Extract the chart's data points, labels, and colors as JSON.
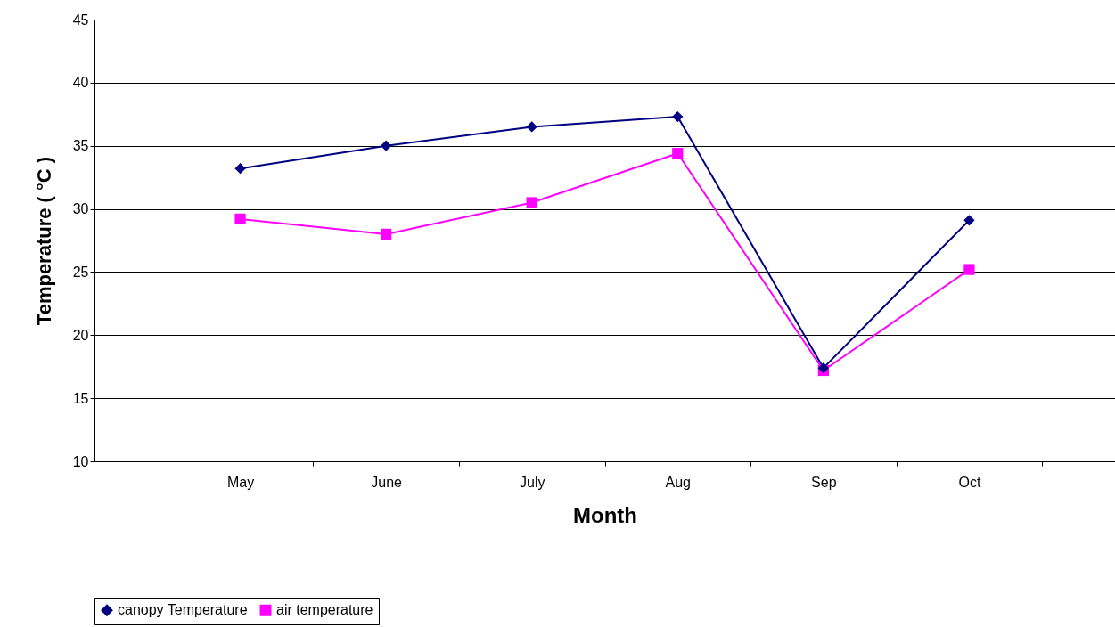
{
  "chart_data": {
    "type": "line",
    "xlabel": "Month",
    "ylabel": "Temperature (  °C )",
    "categories": [
      "May",
      "June",
      "July",
      "Aug",
      "Sep",
      "Oct"
    ],
    "series": [
      {
        "name": "canopy Temperature",
        "color": "#000080",
        "marker": "diamond",
        "values": [
          33.2,
          35.0,
          36.5,
          37.3,
          17.4,
          29.1
        ]
      },
      {
        "name": "air temperature",
        "color": "#ff00ff",
        "marker": "square",
        "values": [
          29.2,
          28.0,
          30.5,
          34.4,
          17.2,
          25.2
        ]
      }
    ],
    "ylim": [
      10,
      45
    ],
    "yticks": [
      10,
      15,
      20,
      25,
      30,
      35,
      40,
      45
    ],
    "grid": "y",
    "legend": "bottom",
    "line_style": "solid"
  }
}
